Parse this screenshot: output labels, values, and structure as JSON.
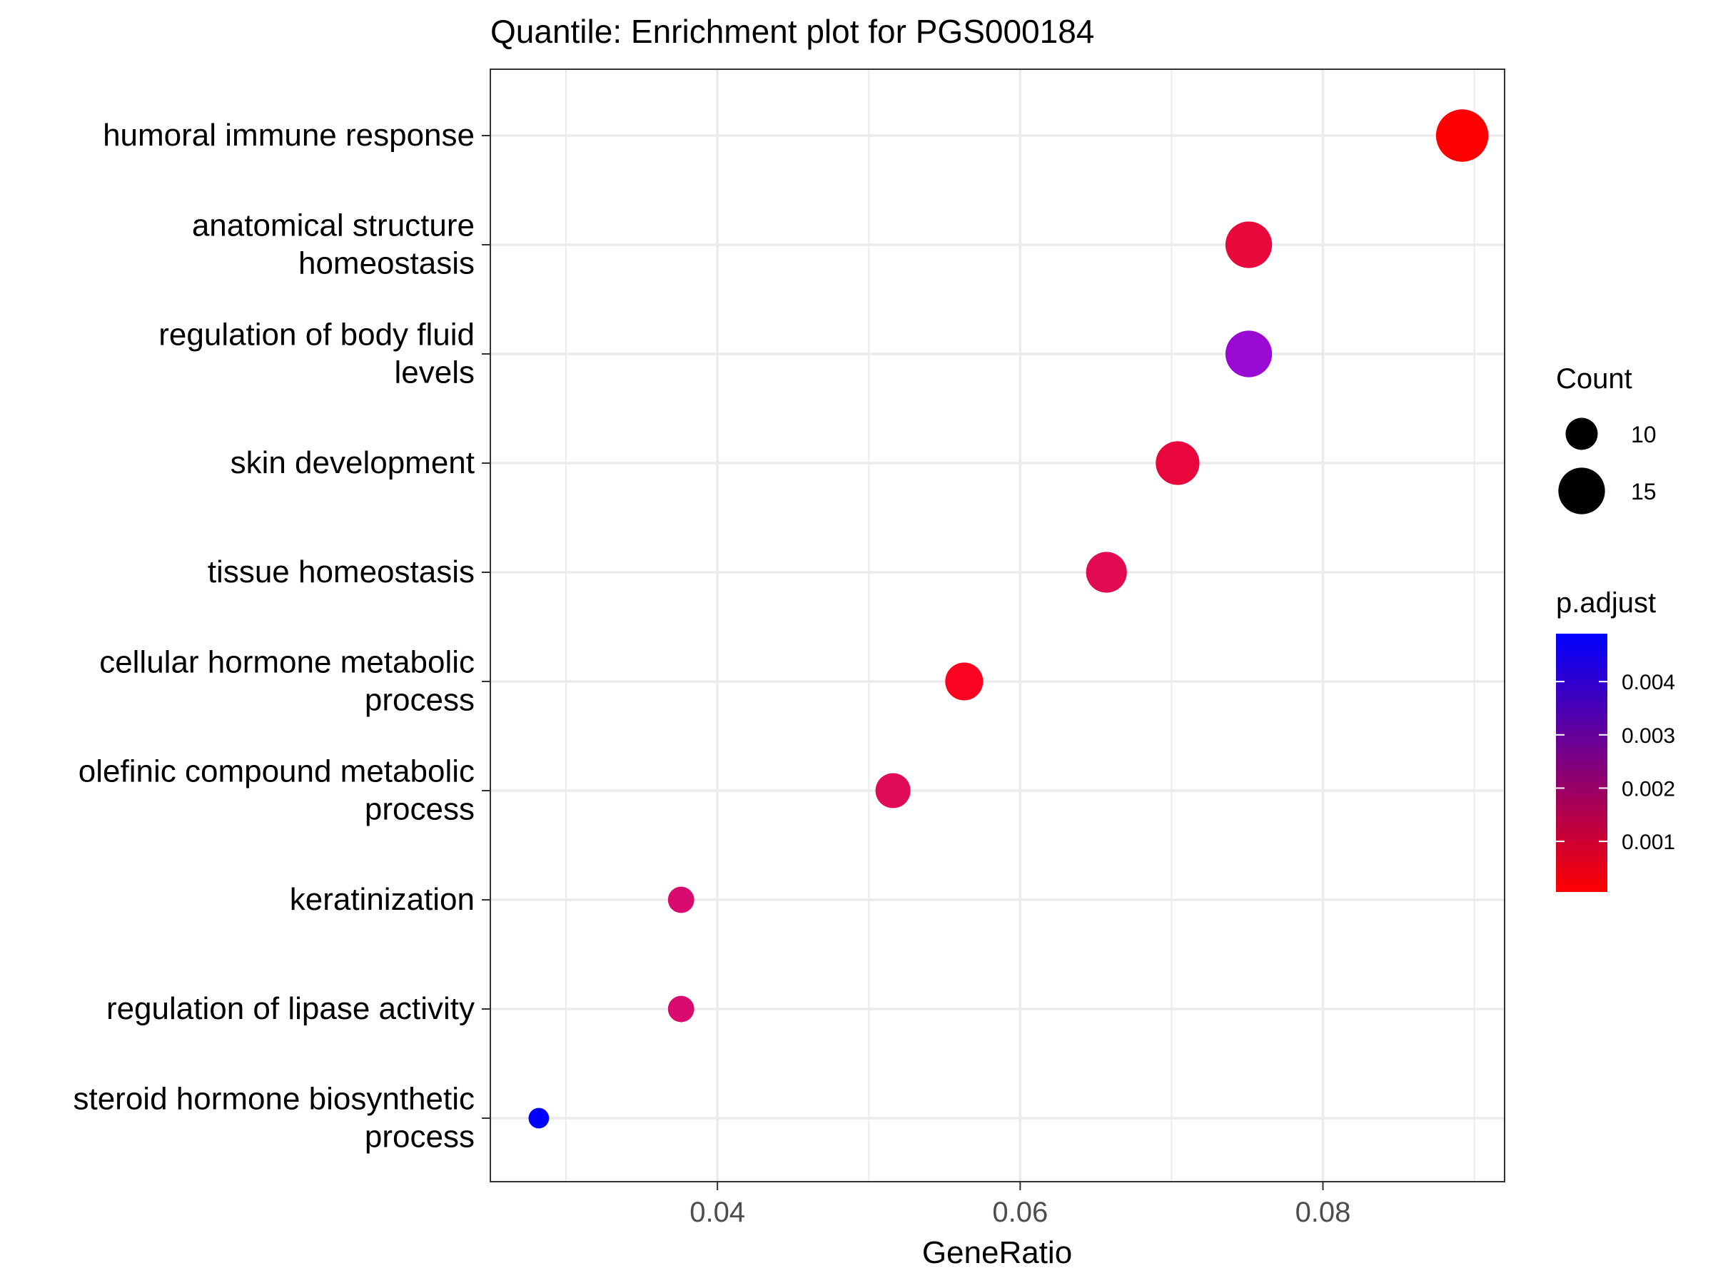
{
  "chart_data": {
    "type": "scatter",
    "title": "Quantile: Enrichment plot for PGS000184",
    "xlabel": "GeneRatio",
    "ylabel": "",
    "xlim": [
      0.025,
      0.092
    ],
    "x_ticks": [
      {
        "value": 0.04,
        "label": "0.04"
      },
      {
        "value": 0.06,
        "label": "0.06"
      },
      {
        "value": 0.08,
        "label": "0.08"
      }
    ],
    "grid": true,
    "categories": [
      {
        "label": [
          "humoral immune response"
        ],
        "x": 0.0892,
        "count": 17,
        "p_adjust": 5e-05,
        "color": "#FF0000"
      },
      {
        "label": [
          "anatomical structure",
          "homeostasis"
        ],
        "x": 0.0751,
        "count": 15,
        "p_adjust": 0.0012,
        "color": "#E8083B"
      },
      {
        "label": [
          "regulation of body fluid",
          "levels"
        ],
        "x": 0.0751,
        "count": 15,
        "p_adjust": 0.0037,
        "color": "#9B0AD2"
      },
      {
        "label": [
          "skin development"
        ],
        "x": 0.0704,
        "count": 14,
        "p_adjust": 0.0012,
        "color": "#E8063C"
      },
      {
        "label": [
          "tissue homeostasis"
        ],
        "x": 0.0657,
        "count": 13,
        "p_adjust": 0.0015,
        "color": "#E20A50"
      },
      {
        "label": [
          "cellular hormone metabolic",
          "process"
        ],
        "x": 0.0563,
        "count": 12,
        "p_adjust": 0.0002,
        "color": "#FB0220"
      },
      {
        "label": [
          "olefinic compound metabolic",
          "process"
        ],
        "x": 0.0516,
        "count": 11,
        "p_adjust": 0.0015,
        "color": "#E00A56"
      },
      {
        "label": [
          "keratinization"
        ],
        "x": 0.0376,
        "count": 8,
        "p_adjust": 0.0018,
        "color": "#DA0B6E"
      },
      {
        "label": [
          "regulation of lipase activity"
        ],
        "x": 0.0376,
        "count": 8,
        "p_adjust": 0.0018,
        "color": "#DA0B6E"
      },
      {
        "label": [
          "steroid hormone biosynthetic",
          "process"
        ],
        "x": 0.0282,
        "count": 6,
        "p_adjust": 0.0049,
        "color": "#0000FF"
      }
    ],
    "legend": {
      "placement": "right",
      "size": {
        "title": "Count",
        "entries": [
          {
            "value": 10,
            "label": "10"
          },
          {
            "value": 15,
            "label": "15"
          }
        ]
      },
      "color": {
        "title": "p.adjust",
        "low_color": "#FF0000",
        "high_color": "#0000FF",
        "range": [
          5e-05,
          0.0049
        ],
        "ticks": [
          {
            "value": 0.001,
            "label": "0.001"
          },
          {
            "value": 0.002,
            "label": "0.002"
          },
          {
            "value": 0.003,
            "label": "0.003"
          },
          {
            "value": 0.004,
            "label": "0.004"
          }
        ]
      }
    }
  }
}
